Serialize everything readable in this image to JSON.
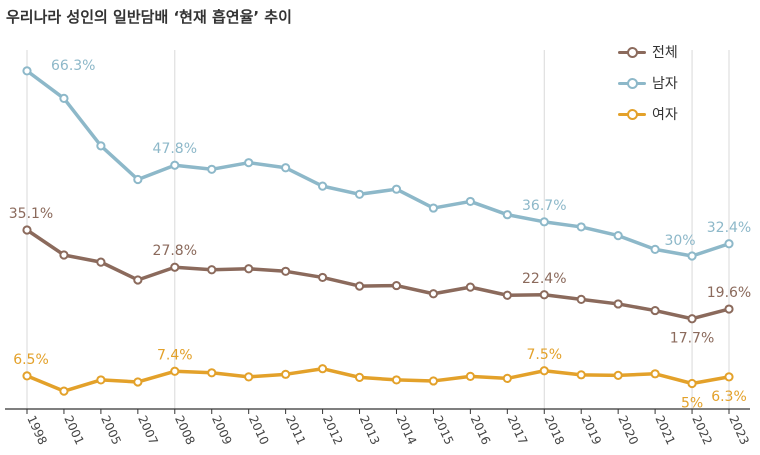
{
  "chart_data": {
    "type": "line",
    "title": "우리나라 성인의 일반담배 ‘현재 흡연율’ 추이",
    "xlabel": "",
    "ylabel": "",
    "ylim": [
      0,
      70
    ],
    "categories": [
      "1998",
      "2001",
      "2005",
      "2007",
      "2008",
      "2009",
      "2010",
      "2011",
      "2012",
      "2013",
      "2014",
      "2015",
      "2016",
      "2017",
      "2018",
      "2019",
      "2020",
      "2021",
      "2022",
      "2023"
    ],
    "series": [
      {
        "name": "전체",
        "color": "#8b6a5c",
        "values": [
          35.1,
          30.2,
          28.8,
          25.3,
          27.8,
          27.3,
          27.5,
          27.0,
          25.8,
          24.1,
          24.2,
          22.6,
          23.9,
          22.3,
          22.4,
          21.5,
          20.6,
          19.3,
          17.7,
          19.6
        ],
        "labels": [
          {
            "index": 0,
            "text": "35.1%",
            "pos": "above"
          },
          {
            "index": 4,
            "text": "27.8%",
            "pos": "above"
          },
          {
            "index": 14,
            "text": "22.4%",
            "pos": "above"
          },
          {
            "index": 18,
            "text": "17.7%",
            "pos": "below"
          },
          {
            "index": 19,
            "text": "19.6%",
            "pos": "above"
          }
        ]
      },
      {
        "name": "남자",
        "color": "#8db8c9",
        "values": [
          66.3,
          60.9,
          51.6,
          45.0,
          47.8,
          47.0,
          48.3,
          47.3,
          43.7,
          42.1,
          43.1,
          39.4,
          40.7,
          38.1,
          36.7,
          35.7,
          34.0,
          31.3,
          30.0,
          32.4
        ],
        "labels": [
          {
            "index": 0,
            "text": "66.3%",
            "pos": "right"
          },
          {
            "index": 4,
            "text": "47.8%",
            "pos": "above"
          },
          {
            "index": 14,
            "text": "36.7%",
            "pos": "above"
          },
          {
            "index": 18,
            "text": "30%",
            "pos": "above-left"
          },
          {
            "index": 19,
            "text": "32.4%",
            "pos": "above"
          }
        ]
      },
      {
        "name": "여자",
        "color": "#e3a12a",
        "values": [
          6.5,
          3.5,
          5.7,
          5.3,
          7.4,
          7.1,
          6.3,
          6.8,
          7.9,
          6.2,
          5.7,
          5.5,
          6.4,
          6.0,
          7.5,
          6.7,
          6.6,
          6.9,
          5.0,
          6.3
        ],
        "labels": [
          {
            "index": 0,
            "text": "6.5%",
            "pos": "above"
          },
          {
            "index": 4,
            "text": "7.4%",
            "pos": "above"
          },
          {
            "index": 14,
            "text": "7.5%",
            "pos": "above"
          },
          {
            "index": 18,
            "text": "5%",
            "pos": "below"
          },
          {
            "index": 19,
            "text": "6.3%",
            "pos": "below"
          }
        ]
      }
    ],
    "legend_position": "top-right"
  }
}
